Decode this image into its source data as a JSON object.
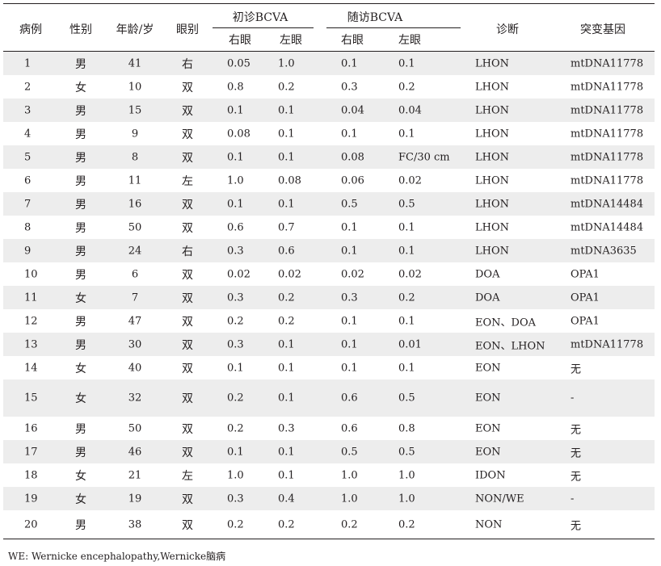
{
  "table": {
    "headers": {
      "case": "病例",
      "sex": "性别",
      "age": "年龄/岁",
      "eye": "眼别",
      "initial_bcva": "初诊BCVA",
      "followup_bcva": "随访BCVA",
      "right_eye": "右眼",
      "left_eye": "左眼",
      "diagnosis": "诊断",
      "mutation": "突变基因"
    },
    "rows": [
      {
        "case": "1",
        "sex": "男",
        "age": "41",
        "eye": "右",
        "init_r": "0.05",
        "init_l": "1.0",
        "fu_r": "0.1",
        "fu_l": "0.1",
        "diag": "LHON",
        "gene": "mtDNA11778"
      },
      {
        "case": "2",
        "sex": "女",
        "age": "10",
        "eye": "双",
        "init_r": "0.8",
        "init_l": "0.2",
        "fu_r": "0.3",
        "fu_l": "0.2",
        "diag": "LHON",
        "gene": "mtDNA11778"
      },
      {
        "case": "3",
        "sex": "男",
        "age": "15",
        "eye": "双",
        "init_r": "0.1",
        "init_l": "0.1",
        "fu_r": "0.04",
        "fu_l": "0.04",
        "diag": "LHON",
        "gene": "mtDNA11778"
      },
      {
        "case": "4",
        "sex": "男",
        "age": "9",
        "eye": "双",
        "init_r": "0.08",
        "init_l": "0.1",
        "fu_r": "0.1",
        "fu_l": "0.1",
        "diag": "LHON",
        "gene": "mtDNA11778"
      },
      {
        "case": "5",
        "sex": "男",
        "age": "8",
        "eye": "双",
        "init_r": "0.1",
        "init_l": "0.1",
        "fu_r": "0.08",
        "fu_l": "FC/30 cm",
        "diag": "LHON",
        "gene": "mtDNA11778"
      },
      {
        "case": "6",
        "sex": "男",
        "age": "11",
        "eye": "左",
        "init_r": "1.0",
        "init_l": "0.08",
        "fu_r": "0.06",
        "fu_l": "0.02",
        "diag": "LHON",
        "gene": "mtDNA11778"
      },
      {
        "case": "7",
        "sex": "男",
        "age": "16",
        "eye": "双",
        "init_r": "0.1",
        "init_l": "0.1",
        "fu_r": "0.5",
        "fu_l": "0.5",
        "diag": "LHON",
        "gene": "mtDNA14484"
      },
      {
        "case": "8",
        "sex": "男",
        "age": "50",
        "eye": "双",
        "init_r": "0.6",
        "init_l": "0.7",
        "fu_r": "0.1",
        "fu_l": "0.1",
        "diag": "LHON",
        "gene": "mtDNA14484"
      },
      {
        "case": "9",
        "sex": "男",
        "age": "24",
        "eye": "右",
        "init_r": "0.3",
        "init_l": "0.6",
        "fu_r": "0.1",
        "fu_l": "0.1",
        "diag": "LHON",
        "gene": "mtDNA3635"
      },
      {
        "case": "10",
        "sex": "男",
        "age": "6",
        "eye": "双",
        "init_r": "0.02",
        "init_l": "0.02",
        "fu_r": "0.02",
        "fu_l": "0.02",
        "diag": "DOA",
        "gene": "OPA1"
      },
      {
        "case": "11",
        "sex": "女",
        "age": "7",
        "eye": "双",
        "init_r": "0.3",
        "init_l": "0.2",
        "fu_r": "0.3",
        "fu_l": "0.2",
        "diag": "DOA",
        "gene": "OPA1"
      },
      {
        "case": "12",
        "sex": "男",
        "age": "47",
        "eye": "双",
        "init_r": "0.2",
        "init_l": "0.2",
        "fu_r": "0.1",
        "fu_l": "0.1",
        "diag": "EON、DOA",
        "gene": "OPA1"
      },
      {
        "case": "13",
        "sex": "男",
        "age": "30",
        "eye": "双",
        "init_r": "0.3",
        "init_l": "0.1",
        "fu_r": "0.1",
        "fu_l": "0.01",
        "diag": "EON、LHON",
        "gene": "mtDNA11778"
      },
      {
        "case": "14",
        "sex": "女",
        "age": "40",
        "eye": "双",
        "init_r": "0.1",
        "init_l": "0.1",
        "fu_r": "0.1",
        "fu_l": "0.1",
        "diag": "EON",
        "gene": "无"
      },
      {
        "case": "15",
        "sex": "女",
        "age": "32",
        "eye": "双",
        "init_r": "0.2",
        "init_l": "0.1",
        "fu_r": "0.6",
        "fu_l": "0.5",
        "diag": "EON",
        "gene": "-"
      },
      {
        "case": "16",
        "sex": "男",
        "age": "50",
        "eye": "双",
        "init_r": "0.2",
        "init_l": "0.3",
        "fu_r": "0.6",
        "fu_l": "0.8",
        "diag": "EON",
        "gene": "无"
      },
      {
        "case": "17",
        "sex": "男",
        "age": "46",
        "eye": "双",
        "init_r": "0.1",
        "init_l": "0.1",
        "fu_r": "0.5",
        "fu_l": "0.5",
        "diag": "EON",
        "gene": "无"
      },
      {
        "case": "18",
        "sex": "女",
        "age": "21",
        "eye": "左",
        "init_r": "1.0",
        "init_l": "0.1",
        "fu_r": "1.0",
        "fu_l": "1.0",
        "diag": "IDON",
        "gene": "无"
      },
      {
        "case": "19",
        "sex": "女",
        "age": "19",
        "eye": "双",
        "init_r": "0.3",
        "init_l": "0.4",
        "fu_r": "1.0",
        "fu_l": "1.0",
        "diag": "NON/WE",
        "gene": "-"
      },
      {
        "case": "20",
        "sex": "男",
        "age": "38",
        "eye": "双",
        "init_r": "0.2",
        "init_l": "0.2",
        "fu_r": "0.2",
        "fu_l": "0.2",
        "diag": "NON",
        "gene": "无"
      }
    ]
  },
  "footnote": "WE: Wernicke encephalopathy,Wernicke脑病",
  "colors": {
    "stripe": "#ededed",
    "text": "#231f20",
    "rule": "#231f20"
  }
}
